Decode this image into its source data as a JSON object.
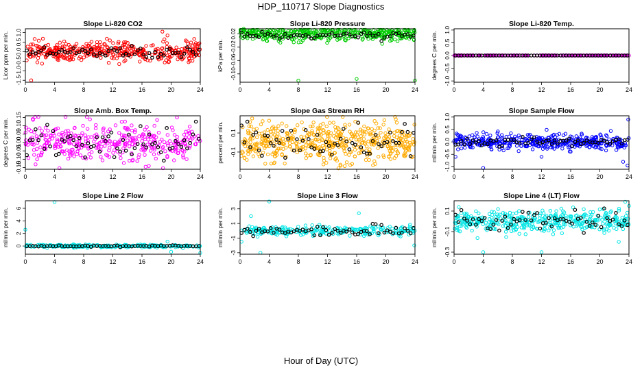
{
  "figure": {
    "title": "HDP_110717  Slope Diagnostics",
    "xlabel": "Hour of Day (UTC)"
  },
  "chart_data": [
    {
      "type": "scatter",
      "title": "Slope Li-820 CO2",
      "ylabel": "Licor ppm per min.",
      "color": "#ff0000",
      "xlim": [
        0,
        24
      ],
      "xticks": [
        0,
        4,
        8,
        12,
        16,
        20,
        24
      ],
      "ylim": [
        -1.6,
        1.2
      ],
      "yticks": [
        -1.5,
        -1.0,
        -0.5,
        0.0,
        0.5,
        1.0
      ],
      "ytick_labels": [
        "-1.5",
        "-1.0",
        "-0.5",
        "0.0",
        "0.5",
        "1.0"
      ],
      "main_series": {
        "center": 0.0,
        "spread": 0.25,
        "count": 420
      },
      "black_series": {
        "center": 0.0,
        "spread": 0.15,
        "count": 60
      },
      "outliers": [
        [
          0.8,
          -1.5
        ],
        [
          18.8,
          1.05
        ],
        [
          19.5,
          0.85
        ],
        [
          22.4,
          -0.55
        ],
        [
          20.9,
          -0.4
        ]
      ]
    },
    {
      "type": "scatter",
      "title": "Slope Li-820 Pressure",
      "ylabel": "kPa per min.",
      "color": "#00cc00",
      "xlim": [
        0,
        24
      ],
      "xticks": [
        0,
        4,
        8,
        12,
        16,
        20,
        24
      ],
      "ylim": [
        -0.125,
        0.035
      ],
      "yticks": [
        -0.1,
        -0.06,
        -0.02,
        0.02
      ],
      "ytick_labels": [
        "-0.10",
        "-0.06",
        "-0.02",
        "0.02"
      ],
      "main_series": {
        "center": 0.02,
        "spread": 0.01,
        "count": 420
      },
      "black_series": {
        "center": 0.015,
        "spread": 0.005,
        "count": 60
      },
      "outliers": [
        [
          8,
          -0.12
        ],
        [
          16,
          -0.115
        ],
        [
          24,
          -0.12
        ],
        [
          19.5,
          -0.01
        ],
        [
          0.5,
          0.035
        ]
      ]
    },
    {
      "type": "scatter",
      "title": "Slope Li-820 Temp.",
      "ylabel": "degrees C per min.",
      "color": "#cc00cc",
      "xlim": [
        0,
        24
      ],
      "xticks": [
        0,
        4,
        8,
        12,
        16,
        20,
        24
      ],
      "ylim": [
        -1.05,
        1.05
      ],
      "yticks": [
        -1.0,
        -0.5,
        0.0,
        0.5,
        1.0
      ],
      "ytick_labels": [
        "-1.0",
        "-0.5",
        "0.0",
        "0.5",
        "1.0"
      ],
      "main_series": {
        "center": 0.0,
        "spread": 0.0,
        "count": 240
      },
      "black_series": {
        "center": 0.0,
        "spread": 0.0,
        "count": 60
      },
      "outliers": []
    },
    {
      "type": "scatter",
      "title": "Slope Amb. Box Temp.",
      "ylabel": "degrees C per min.",
      "color": "#ff00ff",
      "xlim": [
        0,
        24
      ],
      "xticks": [
        0,
        4,
        8,
        12,
        16,
        20,
        24
      ],
      "ylim": [
        -0.16,
        0.16
      ],
      "yticks": [
        -0.15,
        -0.1,
        -0.05,
        0.0,
        0.05,
        0.1,
        0.15
      ],
      "ytick_labels": [
        "-0.15",
        "-0.10",
        "-0.05",
        "0.00",
        "0.05",
        "0.10",
        "0.15"
      ],
      "main_series": {
        "center": 0.0,
        "spread": 0.06,
        "count": 380
      },
      "black_series": {
        "center": 0.0,
        "spread": 0.05,
        "count": 60
      },
      "outliers": [
        [
          16.5,
          -0.145
        ],
        [
          20.8,
          0.15
        ],
        [
          1.0,
          0.14
        ]
      ]
    },
    {
      "type": "scatter",
      "title": "Slope Gas Stream RH",
      "ylabel": "percent per min.",
      "color": "#ffaa00",
      "xlim": [
        0,
        24
      ],
      "xticks": [
        0,
        4,
        8,
        12,
        16,
        20,
        24
      ],
      "ylim": [
        -0.28,
        0.28
      ],
      "yticks": [
        -0.1,
        0.1
      ],
      "ytick_labels": [
        "-0.1",
        "0.1"
      ],
      "main_series": {
        "center": 0.0,
        "spread": 0.1,
        "count": 520
      },
      "black_series": {
        "center": 0.0,
        "spread": 0.08,
        "count": 60
      },
      "outliers": [
        [
          13.5,
          -0.27
        ],
        [
          18.7,
          0.2
        ]
      ]
    },
    {
      "type": "scatter",
      "title": "Slope Sample Flow",
      "ylabel": "ml/min per min.",
      "color": "#0000ff",
      "xlim": [
        0,
        24
      ],
      "xticks": [
        0,
        4,
        8,
        12,
        16,
        20,
        24
      ],
      "ylim": [
        -1.1,
        1.05
      ],
      "yticks": [
        -1.0,
        -0.5,
        0.0,
        0.5,
        1.0
      ],
      "ytick_labels": [
        "-1.0",
        "-0.5",
        "0.0",
        "0.5",
        "1.0"
      ],
      "main_series": {
        "center": 0.0,
        "spread": 0.15,
        "count": 420
      },
      "black_series": {
        "center": 0.0,
        "spread": 0.08,
        "count": 60
      },
      "outliers": [
        [
          4,
          -1.05
        ],
        [
          23.8,
          -0.95
        ],
        [
          23.9,
          0.9
        ],
        [
          23.2,
          -0.8
        ],
        [
          12,
          -0.6
        ],
        [
          0.2,
          -0.6
        ]
      ]
    },
    {
      "type": "scatter",
      "title": "Slope Line 2 Flow",
      "ylabel": "ml/min per min.",
      "color": "#00e5e5",
      "xlim": [
        0,
        24
      ],
      "xticks": [
        0,
        4,
        8,
        12,
        16,
        20,
        24
      ],
      "ylim": [
        -1.3,
        7.2
      ],
      "yticks": [
        0,
        2,
        4,
        6
      ],
      "ytick_labels": [
        "0",
        "2",
        "4",
        "6"
      ],
      "main_series": {
        "center": 0.0,
        "spread": 0.12,
        "count": 260
      },
      "black_series": {
        "center": 0.0,
        "spread": 0.05,
        "count": 60
      },
      "outliers": [
        [
          0,
          2.6
        ],
        [
          4,
          7.0
        ],
        [
          20,
          -0.9
        ],
        [
          24,
          -1.1
        ],
        [
          19.5,
          0.7
        ]
      ]
    },
    {
      "type": "scatter",
      "title": "Slope Line 3 Flow",
      "ylabel": "ml/min per min.",
      "color": "#00e5e5",
      "xlim": [
        0,
        24
      ],
      "xticks": [
        0,
        4,
        8,
        12,
        16,
        20,
        24
      ],
      "ylim": [
        -3.2,
        4.1
      ],
      "yticks": [
        -3,
        -1,
        1,
        3
      ],
      "ytick_labels": [
        "-3",
        "-1",
        "1",
        "3"
      ],
      "main_series": {
        "center": 0.0,
        "spread": 0.3,
        "count": 260
      },
      "black_series": {
        "center": 0.0,
        "spread": 0.3,
        "count": 60
      },
      "outliers": [
        [
          4,
          4.0
        ],
        [
          2.8,
          -3.0
        ],
        [
          16.3,
          2.4
        ],
        [
          23.9,
          -2.0
        ],
        [
          1.5,
          2.0
        ],
        [
          0.2,
          -1.5
        ]
      ]
    },
    {
      "type": "scatter",
      "title": "Slope Line 4 (LT) Flow",
      "ylabel": "ml/min per min.",
      "color": "#00e5e5",
      "xlim": [
        0,
        24
      ],
      "xticks": [
        0,
        4,
        8,
        12,
        16,
        20,
        24
      ],
      "ylim": [
        -0.32,
        0.2
      ],
      "yticks": [
        -0.3,
        -0.1,
        0.1
      ],
      "ytick_labels": [
        "-0.3",
        "-0.1",
        "0.1"
      ],
      "main_series": {
        "center": 0.0,
        "spread": 0.05,
        "count": 420
      },
      "black_series": {
        "center": 0.0,
        "spread": 0.05,
        "count": 60
      },
      "outliers": [
        [
          4,
          -0.3
        ],
        [
          12,
          -0.3
        ],
        [
          23.5,
          0.19
        ],
        [
          24,
          0.15
        ],
        [
          22.6,
          -0.2
        ]
      ]
    }
  ]
}
